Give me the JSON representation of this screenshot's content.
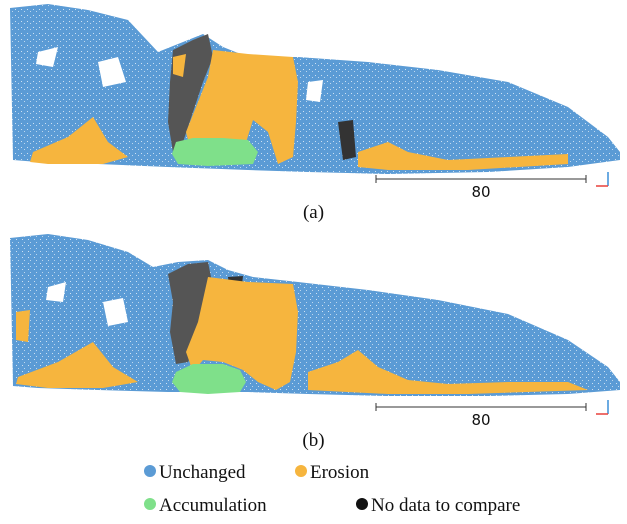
{
  "colors": {
    "unchanged": "#5b9bd5",
    "erosion": "#f6b53e",
    "accumulation": "#7fe08a",
    "no_data": "#111111",
    "no_data_grey": "#555555",
    "axis_red": "#e8413a",
    "axis_blue": "#3b8fd9"
  },
  "panels": [
    {
      "caption": "(a)",
      "scale_label": "80"
    },
    {
      "caption": "(b)",
      "scale_label": "80"
    }
  ],
  "legend": [
    {
      "label": "Unchanged",
      "color": "#5b9bd5"
    },
    {
      "label": "Erosion",
      "color": "#f6b53e"
    },
    {
      "label": "Accumulation",
      "color": "#7fe08a"
    },
    {
      "label": "No data to compare",
      "color": "#111111"
    }
  ]
}
